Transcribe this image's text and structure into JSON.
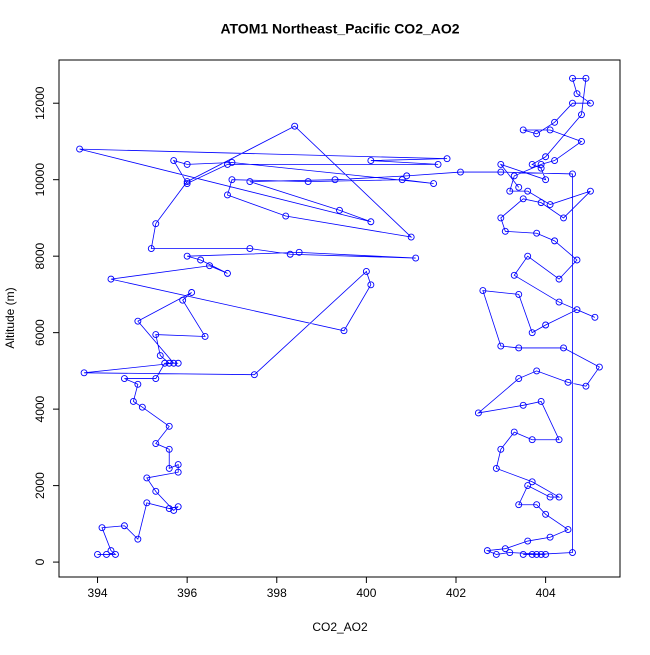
{
  "chart_data": {
    "type": "line",
    "title": "ATOM1 Northeast_Pacific CO2_AO2",
    "x_label": "CO2_AO2",
    "y_label": "Altitude (m)",
    "color": "#0000ff",
    "markers": true,
    "xlim": [
      393.14,
      405.66
    ],
    "ylim": [
      -390,
      13130
    ],
    "xticks": [
      394,
      396,
      398,
      400,
      402,
      404
    ],
    "yticks": [
      0,
      2000,
      4000,
      6000,
      8000,
      10000,
      12000
    ],
    "x": [
      394.0,
      394.2,
      394.4,
      394.3,
      394.1,
      394.6,
      394.9,
      395.1,
      395.6,
      395.8,
      395.7,
      395.3,
      395.1,
      395.8,
      395.8,
      395.6,
      395.6,
      395.3,
      395.6,
      395.0,
      394.8,
      394.9,
      394.6,
      395.3,
      395.5,
      395.8,
      395.6,
      395.4,
      395.3,
      396.4,
      395.9,
      396.1,
      394.9,
      395.7,
      393.7,
      397.5,
      400.0,
      400.1,
      399.5,
      394.3,
      396.5,
      396.9,
      396.3,
      396.0,
      398.5,
      401.1,
      398.3,
      397.4,
      395.2,
      395.3,
      396.0,
      398.4,
      401.0,
      398.2,
      396.9,
      397.0,
      398.7,
      400.8,
      401.5,
      397.0,
      396.0,
      395.7,
      396.0,
      396.9,
      401.6,
      400.1,
      401.8,
      393.6,
      400.1,
      399.4,
      397.4,
      399.3,
      400.9,
      402.1,
      403.0,
      404.6,
      404.6,
      403.8,
      403.5,
      403.7,
      403.9,
      404.0,
      403.2,
      402.9,
      402.7,
      403.1,
      403.6,
      404.1,
      404.5,
      404.0,
      403.8,
      403.4,
      403.6,
      404.1,
      404.3,
      403.7,
      402.9,
      403.0,
      403.3,
      403.7,
      404.3,
      403.9,
      403.5,
      402.5,
      403.4,
      403.8,
      404.5,
      404.9,
      405.2,
      404.4,
      403.4,
      403.0,
      402.6,
      403.4,
      403.7,
      404.0,
      404.7,
      405.1,
      404.3,
      403.3,
      403.6,
      404.3,
      404.7,
      404.2,
      403.8,
      403.1,
      403.0,
      403.5,
      403.9,
      404.4,
      405.0,
      404.1,
      403.6,
      403.2,
      403.3,
      403.9,
      404.2,
      404.8,
      404.1,
      403.5,
      403.8,
      404.2,
      404.6,
      405.0,
      404.7,
      404.6,
      404.9,
      404.8,
      404.0,
      403.7,
      403.9,
      404.0,
      403.0,
      403.4
    ],
    "values": [
      200,
      200,
      200,
      300,
      900,
      950,
      600,
      1550,
      1400,
      1450,
      1350,
      1850,
      2200,
      2350,
      2550,
      2450,
      2950,
      3100,
      3550,
      4050,
      4200,
      4650,
      4800,
      4800,
      5200,
      5200,
      5200,
      5400,
      5950,
      5900,
      6850,
      7050,
      6300,
      5200,
      4950,
      4900,
      7600,
      7250,
      6050,
      7400,
      7750,
      7550,
      7900,
      8000,
      8100,
      7950,
      8050,
      8200,
      8200,
      8850,
      9950,
      11400,
      8500,
      9050,
      9600,
      10000,
      9950,
      10000,
      9900,
      10450,
      10400,
      10500,
      9900,
      10400,
      10400,
      10500,
      10550,
      10800,
      8900,
      9200,
      9950,
      10000,
      10100,
      10200,
      10200,
      10150,
      250,
      200,
      200,
      200,
      200,
      200,
      250,
      200,
      300,
      350,
      550,
      650,
      850,
      1250,
      1500,
      1500,
      2000,
      1700,
      1700,
      2100,
      2450,
      2950,
      3400,
      3200,
      3200,
      4200,
      4100,
      3900,
      4800,
      5000,
      4700,
      4600,
      5100,
      5600,
      5600,
      5650,
      7100,
      7000,
      6000,
      6200,
      6600,
      6400,
      6800,
      7500,
      8000,
      7400,
      7900,
      8400,
      8600,
      8650,
      9000,
      9500,
      9400,
      9000,
      9700,
      9350,
      9700,
      9700,
      10100,
      10400,
      10500,
      11000,
      11300,
      11300,
      11200,
      11500,
      12000,
      12000,
      12250,
      12650,
      12650,
      11700,
      10600,
      10400,
      10300,
      10000,
      10400,
      9800
    ]
  }
}
